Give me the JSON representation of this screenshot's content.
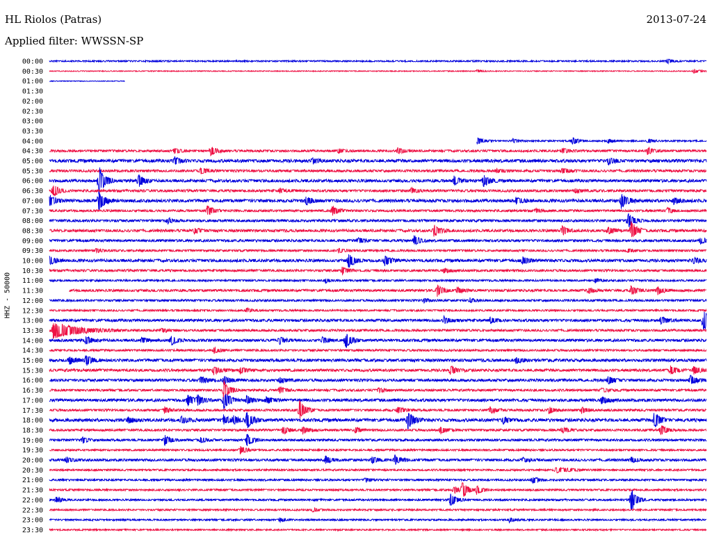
{
  "header": {
    "station": "HL Riolos (Patras)",
    "date": "2013-07-24",
    "filter": "Applied filter: WWSSN-SP",
    "channel": "HHZ - 50000"
  },
  "colors": {
    "blue": "#0000dd",
    "red": "#ee1144"
  },
  "chart_data": {
    "type": "line",
    "title": "HL Riolos (Patras)",
    "subtitle": "Applied filter: WWSSN-SP",
    "ylabel": "HHZ - 50000",
    "xlabel": "",
    "grid": false,
    "traces": [
      {
        "label": "00:00",
        "color": "blue",
        "start": 0.0,
        "end": 1.0,
        "noise": 0.8,
        "events": [
          {
            "t": 0.94,
            "a": 3
          }
        ]
      },
      {
        "label": "00:30",
        "color": "red",
        "start": 0.0,
        "end": 1.0,
        "noise": 0.5,
        "events": [
          {
            "t": 0.65,
            "a": 2
          },
          {
            "t": 0.98,
            "a": 3
          }
        ]
      },
      {
        "label": "01:00",
        "color": "blue",
        "start": 0.0,
        "end": 0.115,
        "noise": 0.4,
        "events": []
      },
      {
        "label": "01:30",
        "color": "red",
        "start": 0,
        "end": 0,
        "noise": 0,
        "events": []
      },
      {
        "label": "02:00",
        "color": "blue",
        "start": 0,
        "end": 0,
        "noise": 0,
        "events": []
      },
      {
        "label": "02:30",
        "color": "red",
        "start": 0,
        "end": 0,
        "noise": 0,
        "events": []
      },
      {
        "label": "03:00",
        "color": "blue",
        "start": 0,
        "end": 0,
        "noise": 0,
        "events": []
      },
      {
        "label": "03:30",
        "color": "red",
        "start": 0,
        "end": 0,
        "noise": 0,
        "events": []
      },
      {
        "label": "04:00",
        "color": "blue",
        "start": 0.65,
        "end": 1.0,
        "noise": 0.8,
        "events": [
          {
            "t": 0.651,
            "a": 5
          },
          {
            "t": 0.705,
            "a": 3
          },
          {
            "t": 0.795,
            "a": 6
          },
          {
            "t": 0.85,
            "a": 3
          },
          {
            "t": 0.91,
            "a": 3
          }
        ]
      },
      {
        "label": "04:30",
        "color": "red",
        "start": 0.0,
        "end": 1.0,
        "noise": 1.2,
        "events": [
          {
            "t": 0.19,
            "a": 4
          },
          {
            "t": 0.245,
            "a": 7
          },
          {
            "t": 0.44,
            "a": 3
          },
          {
            "t": 0.53,
            "a": 5
          },
          {
            "t": 0.78,
            "a": 4
          },
          {
            "t": 0.91,
            "a": 5
          }
        ]
      },
      {
        "label": "05:00",
        "color": "blue",
        "start": 0.0,
        "end": 1.0,
        "noise": 1.6,
        "events": [
          {
            "t": 0.19,
            "a": 6
          },
          {
            "t": 0.4,
            "a": 4
          },
          {
            "t": 0.85,
            "a": 5
          }
        ]
      },
      {
        "label": "05:30",
        "color": "red",
        "start": 0.0,
        "end": 1.0,
        "noise": 1.3,
        "events": [
          {
            "t": 0.23,
            "a": 5
          },
          {
            "t": 0.68,
            "a": 3
          },
          {
            "t": 0.78,
            "a": 4
          }
        ]
      },
      {
        "label": "06:00",
        "color": "blue",
        "start": 0.0,
        "end": 1.0,
        "noise": 1.5,
        "events": [
          {
            "t": 0.075,
            "a": 22
          },
          {
            "t": 0.135,
            "a": 9
          },
          {
            "t": 0.615,
            "a": 7
          },
          {
            "t": 0.66,
            "a": 9
          }
        ]
      },
      {
        "label": "06:30",
        "color": "red",
        "start": 0.0,
        "end": 1.0,
        "noise": 1.3,
        "events": [
          {
            "t": 0.005,
            "a": 10
          },
          {
            "t": 0.35,
            "a": 3
          },
          {
            "t": 0.55,
            "a": 4
          },
          {
            "t": 0.8,
            "a": 3
          }
        ]
      },
      {
        "label": "07:00",
        "color": "blue",
        "start": 0.0,
        "end": 1.0,
        "noise": 1.6,
        "events": [
          {
            "t": 0.0,
            "a": 8
          },
          {
            "t": 0.075,
            "a": 15
          },
          {
            "t": 0.39,
            "a": 6
          },
          {
            "t": 0.71,
            "a": 5
          },
          {
            "t": 0.87,
            "a": 12
          },
          {
            "t": 0.95,
            "a": 4
          }
        ]
      },
      {
        "label": "07:30",
        "color": "red",
        "start": 0.0,
        "end": 1.0,
        "noise": 1.2,
        "events": [
          {
            "t": 0.24,
            "a": 8
          },
          {
            "t": 0.43,
            "a": 7
          },
          {
            "t": 0.74,
            "a": 3
          },
          {
            "t": 0.94,
            "a": 4
          }
        ]
      },
      {
        "label": "08:00",
        "color": "blue",
        "start": 0.0,
        "end": 1.0,
        "noise": 1.3,
        "events": [
          {
            "t": 0.18,
            "a": 4
          },
          {
            "t": 0.88,
            "a": 12
          }
        ]
      },
      {
        "label": "08:30",
        "color": "red",
        "start": 0.0,
        "end": 1.0,
        "noise": 1.4,
        "events": [
          {
            "t": 0.22,
            "a": 4
          },
          {
            "t": 0.585,
            "a": 9
          },
          {
            "t": 0.78,
            "a": 7
          },
          {
            "t": 0.85,
            "a": 5
          },
          {
            "t": 0.885,
            "a": 14
          }
        ]
      },
      {
        "label": "09:00",
        "color": "blue",
        "start": 0.0,
        "end": 1.0,
        "noise": 1.3,
        "events": [
          {
            "t": 0.47,
            "a": 4
          },
          {
            "t": 0.555,
            "a": 7
          },
          {
            "t": 0.99,
            "a": 5
          }
        ]
      },
      {
        "label": "09:30",
        "color": "red",
        "start": 0.0,
        "end": 1.0,
        "noise": 1.1,
        "events": [
          {
            "t": 0.07,
            "a": 3
          },
          {
            "t": 0.44,
            "a": 3
          },
          {
            "t": 0.88,
            "a": 3
          }
        ]
      },
      {
        "label": "10:00",
        "color": "blue",
        "start": 0.0,
        "end": 1.0,
        "noise": 1.5,
        "events": [
          {
            "t": 0.0,
            "a": 6
          },
          {
            "t": 0.455,
            "a": 11
          },
          {
            "t": 0.51,
            "a": 8
          },
          {
            "t": 0.72,
            "a": 6
          },
          {
            "t": 0.98,
            "a": 4
          }
        ]
      },
      {
        "label": "10:30",
        "color": "red",
        "start": 0.0,
        "end": 1.0,
        "noise": 1.2,
        "events": [
          {
            "t": 0.445,
            "a": 6
          },
          {
            "t": 0.6,
            "a": 3
          }
        ]
      },
      {
        "label": "11:00",
        "color": "blue",
        "start": 0.0,
        "end": 1.0,
        "noise": 1.0,
        "events": [
          {
            "t": 0.42,
            "a": 3
          },
          {
            "t": 0.83,
            "a": 3
          }
        ]
      },
      {
        "label": "11:30",
        "color": "red",
        "start": 0.03,
        "end": 1.0,
        "noise": 1.3,
        "events": [
          {
            "t": 0.59,
            "a": 9
          },
          {
            "t": 0.62,
            "a": 5
          },
          {
            "t": 0.82,
            "a": 4
          },
          {
            "t": 0.885,
            "a": 7
          },
          {
            "t": 0.925,
            "a": 6
          }
        ]
      },
      {
        "label": "12:00",
        "color": "blue",
        "start": 0.0,
        "end": 1.0,
        "noise": 1.1,
        "events": [
          {
            "t": 0.57,
            "a": 3
          },
          {
            "t": 0.64,
            "a": 3
          }
        ]
      },
      {
        "label": "12:30",
        "color": "red",
        "start": 0.0,
        "end": 1.0,
        "noise": 1.0,
        "events": [
          {
            "t": 0.3,
            "a": 3
          }
        ]
      },
      {
        "label": "13:00",
        "color": "blue",
        "start": 0.0,
        "end": 1.0,
        "noise": 1.4,
        "events": [
          {
            "t": 0.6,
            "a": 5
          },
          {
            "t": 0.67,
            "a": 4
          },
          {
            "t": 0.93,
            "a": 6
          },
          {
            "t": 0.995,
            "a": 16
          }
        ]
      },
      {
        "label": "13:30",
        "color": "red",
        "start": 0.0,
        "end": 1.0,
        "noise": 1.2,
        "events": [
          {
            "t": 0.005,
            "a": 12,
            "d": 0.035
          },
          {
            "t": 0.17,
            "a": 3
          }
        ]
      },
      {
        "label": "14:00",
        "color": "blue",
        "start": 0.0,
        "end": 1.0,
        "noise": 1.4,
        "events": [
          {
            "t": 0.055,
            "a": 6
          },
          {
            "t": 0.14,
            "a": 4
          },
          {
            "t": 0.185,
            "a": 7
          },
          {
            "t": 0.35,
            "a": 5
          },
          {
            "t": 0.415,
            "a": 4
          },
          {
            "t": 0.45,
            "a": 12
          }
        ]
      },
      {
        "label": "14:30",
        "color": "red",
        "start": 0.0,
        "end": 1.0,
        "noise": 1.1,
        "events": [
          {
            "t": 0.25,
            "a": 5
          }
        ]
      },
      {
        "label": "15:00",
        "color": "blue",
        "start": 0.0,
        "end": 1.0,
        "noise": 1.5,
        "events": [
          {
            "t": 0.03,
            "a": 6
          },
          {
            "t": 0.055,
            "a": 8
          },
          {
            "t": 0.71,
            "a": 4
          }
        ]
      },
      {
        "label": "15:30",
        "color": "red",
        "start": 0.0,
        "end": 1.0,
        "noise": 1.4,
        "events": [
          {
            "t": 0.25,
            "a": 6
          },
          {
            "t": 0.29,
            "a": 5
          },
          {
            "t": 0.61,
            "a": 7
          },
          {
            "t": 0.945,
            "a": 6
          },
          {
            "t": 0.98,
            "a": 6
          }
        ]
      },
      {
        "label": "16:00",
        "color": "blue",
        "start": 0.0,
        "end": 1.0,
        "noise": 1.4,
        "events": [
          {
            "t": 0.23,
            "a": 5
          },
          {
            "t": 0.265,
            "a": 6
          },
          {
            "t": 0.35,
            "a": 4
          },
          {
            "t": 0.85,
            "a": 6
          },
          {
            "t": 0.975,
            "a": 7
          }
        ]
      },
      {
        "label": "16:30",
        "color": "red",
        "start": 0.0,
        "end": 1.0,
        "noise": 1.2,
        "events": [
          {
            "t": 0.265,
            "a": 14
          },
          {
            "t": 0.35,
            "a": 5
          },
          {
            "t": 0.5,
            "a": 3
          },
          {
            "t": 0.84,
            "a": 3
          }
        ]
      },
      {
        "label": "17:00",
        "color": "blue",
        "start": 0.0,
        "end": 1.0,
        "noise": 1.5,
        "events": [
          {
            "t": 0.21,
            "a": 8
          },
          {
            "t": 0.225,
            "a": 7
          },
          {
            "t": 0.265,
            "a": 14
          },
          {
            "t": 0.3,
            "a": 6
          },
          {
            "t": 0.33,
            "a": 5
          },
          {
            "t": 0.84,
            "a": 5
          }
        ]
      },
      {
        "label": "17:30",
        "color": "red",
        "start": 0.0,
        "end": 1.0,
        "noise": 1.2,
        "events": [
          {
            "t": 0.175,
            "a": 4
          },
          {
            "t": 0.38,
            "a": 16
          },
          {
            "t": 0.53,
            "a": 5
          },
          {
            "t": 0.67,
            "a": 5
          },
          {
            "t": 0.76,
            "a": 5
          },
          {
            "t": 0.81,
            "a": 4
          }
        ]
      },
      {
        "label": "18:00",
        "color": "blue",
        "start": 0.0,
        "end": 1.0,
        "noise": 1.6,
        "events": [
          {
            "t": 0.12,
            "a": 4
          },
          {
            "t": 0.2,
            "a": 5
          },
          {
            "t": 0.265,
            "a": 7
          },
          {
            "t": 0.28,
            "a": 5
          },
          {
            "t": 0.3,
            "a": 13
          },
          {
            "t": 0.545,
            "a": 15
          },
          {
            "t": 0.69,
            "a": 5
          },
          {
            "t": 0.92,
            "a": 12
          }
        ]
      },
      {
        "label": "18:30",
        "color": "red",
        "start": 0.0,
        "end": 1.0,
        "noise": 1.2,
        "events": [
          {
            "t": 0.355,
            "a": 6
          },
          {
            "t": 0.385,
            "a": 5
          },
          {
            "t": 0.465,
            "a": 4
          },
          {
            "t": 0.595,
            "a": 5
          },
          {
            "t": 0.78,
            "a": 4
          },
          {
            "t": 0.93,
            "a": 8
          }
        ]
      },
      {
        "label": "19:00",
        "color": "blue",
        "start": 0.0,
        "end": 1.0,
        "noise": 1.2,
        "events": [
          {
            "t": 0.05,
            "a": 4
          },
          {
            "t": 0.175,
            "a": 8
          },
          {
            "t": 0.23,
            "a": 4
          },
          {
            "t": 0.3,
            "a": 10
          }
        ]
      },
      {
        "label": "19:30",
        "color": "red",
        "start": 0.0,
        "end": 1.0,
        "noise": 1.0,
        "events": [
          {
            "t": 0.29,
            "a": 6
          }
        ]
      },
      {
        "label": "20:00",
        "color": "blue",
        "start": 0.0,
        "end": 1.0,
        "noise": 1.3,
        "events": [
          {
            "t": 0.025,
            "a": 4
          },
          {
            "t": 0.42,
            "a": 5
          },
          {
            "t": 0.49,
            "a": 5
          },
          {
            "t": 0.525,
            "a": 7
          },
          {
            "t": 0.72,
            "a": 3
          },
          {
            "t": 0.885,
            "a": 4
          }
        ]
      },
      {
        "label": "20:30",
        "color": "red",
        "start": 0.0,
        "end": 1.0,
        "noise": 1.0,
        "events": [
          {
            "t": 0.77,
            "a": 4,
            "d": 0.02
          }
        ]
      },
      {
        "label": "21:00",
        "color": "blue",
        "start": 0.0,
        "end": 1.0,
        "noise": 1.0,
        "events": [
          {
            "t": 0.48,
            "a": 3
          },
          {
            "t": 0.735,
            "a": 5
          }
        ]
      },
      {
        "label": "21:30",
        "color": "red",
        "start": 0.0,
        "end": 1.0,
        "noise": 1.0,
        "events": [
          {
            "t": 0.615,
            "a": 5
          },
          {
            "t": 0.628,
            "a": 12
          },
          {
            "t": 0.65,
            "a": 7
          }
        ]
      },
      {
        "label": "22:00",
        "color": "blue",
        "start": 0.0,
        "end": 1.0,
        "noise": 1.0,
        "events": [
          {
            "t": 0.01,
            "a": 4
          },
          {
            "t": 0.61,
            "a": 10
          },
          {
            "t": 0.885,
            "a": 18
          }
        ]
      },
      {
        "label": "22:30",
        "color": "red",
        "start": 0.0,
        "end": 1.0,
        "noise": 0.9,
        "events": [
          {
            "t": 0.4,
            "a": 3
          }
        ]
      },
      {
        "label": "23:00",
        "color": "blue",
        "start": 0.0,
        "end": 1.0,
        "noise": 0.9,
        "events": [
          {
            "t": 0.35,
            "a": 3
          },
          {
            "t": 0.7,
            "a": 3
          }
        ]
      },
      {
        "label": "23:30",
        "color": "red",
        "start": 0.0,
        "end": 1.0,
        "noise": 0.8,
        "events": []
      }
    ]
  }
}
